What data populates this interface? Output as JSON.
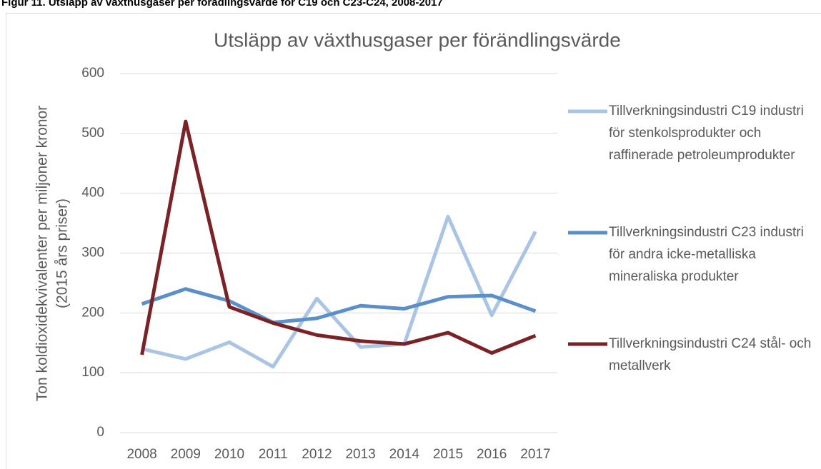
{
  "caption": "Figur 11. Utsläpp av växthusgaser per förädlingsvärde för C19 och C23-C24, 2008-2017",
  "chart_data": {
    "type": "line",
    "title": "Utsläpp av växthusgaser per förändlingsvärde",
    "y_label": [
      "Ton koldioxidekvivalenter per miljoner kronor",
      "(2015 års priser)"
    ],
    "categories": [
      "2008",
      "2009",
      "2010",
      "2011",
      "2012",
      "2013",
      "2014",
      "2015",
      "2016",
      "2017"
    ],
    "series": [
      {
        "name": "Tillverkningsindustri C19 industri för stenkolsprodukter och raffinerade petroleumprodukter",
        "color": "#a9c4e4",
        "values": [
          140,
          123,
          151,
          110,
          224,
          143,
          148,
          361,
          196,
          336
        ]
      },
      {
        "name": "Tillverkningsindustri C23 industri för andra icke-metalliska mineraliska produkter",
        "color": "#5b8fca",
        "values": [
          215,
          240,
          220,
          184,
          191,
          212,
          207,
          227,
          229,
          203
        ]
      },
      {
        "name": "Tillverkningsindustri C24 stål- och metallverk",
        "color": "#7b2226",
        "values": [
          130,
          520,
          210,
          183,
          163,
          153,
          148,
          167,
          133,
          162
        ]
      }
    ],
    "ylim": [
      0,
      600
    ],
    "yticks": [
      0,
      100,
      200,
      300,
      400,
      500,
      600
    ],
    "grid": true,
    "legend": "right"
  }
}
